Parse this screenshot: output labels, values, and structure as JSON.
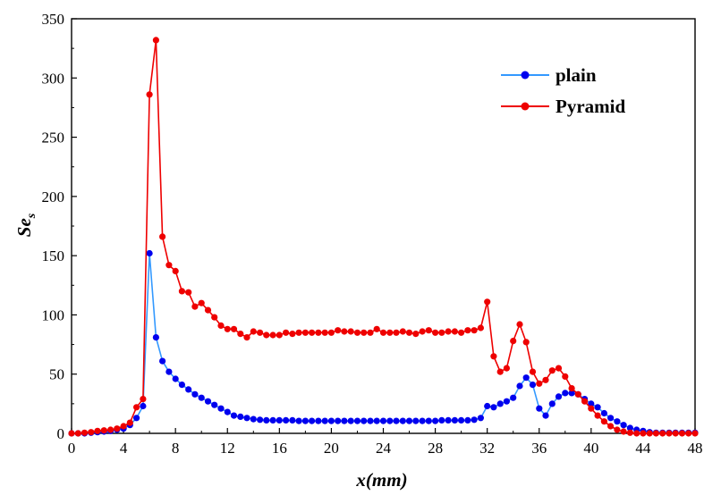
{
  "chart_data": {
    "type": "line",
    "title": "",
    "xlabel": "x(mm)",
    "ylabel_main": "Se",
    "ylabel_sub": "s",
    "xlim": [
      0,
      48
    ],
    "ylim": [
      0,
      350
    ],
    "xticks": [
      "0",
      "4",
      "8",
      "12",
      "16",
      "20",
      "24",
      "28",
      "32",
      "36",
      "40",
      "44",
      "48"
    ],
    "yticks": [
      "0",
      "50",
      "100",
      "150",
      "200",
      "250",
      "300",
      "350"
    ],
    "grid": false,
    "legend_position": "top-right",
    "series": [
      {
        "name": "plain",
        "color": "#0000ee",
        "line_color": "#3399ff",
        "points": [
          [
            0,
            0
          ],
          [
            0.5,
            0
          ],
          [
            1,
            0
          ],
          [
            1.5,
            0.5
          ],
          [
            2,
            1
          ],
          [
            2.5,
            1.5
          ],
          [
            3,
            2
          ],
          [
            3.5,
            3
          ],
          [
            4,
            4
          ],
          [
            4.5,
            7
          ],
          [
            5,
            13
          ],
          [
            5.5,
            23
          ],
          [
            6,
            152
          ],
          [
            6.5,
            81
          ],
          [
            7,
            61
          ],
          [
            7.5,
            52
          ],
          [
            8,
            46
          ],
          [
            8.5,
            41
          ],
          [
            9,
            37
          ],
          [
            9.5,
            33
          ],
          [
            10,
            30
          ],
          [
            10.5,
            27
          ],
          [
            11,
            24
          ],
          [
            11.5,
            21
          ],
          [
            12,
            18
          ],
          [
            12.5,
            15
          ],
          [
            13,
            14
          ],
          [
            13.5,
            13
          ],
          [
            14,
            12
          ],
          [
            14.5,
            11.5
          ],
          [
            15,
            11
          ],
          [
            15.5,
            11
          ],
          [
            16,
            11
          ],
          [
            16.5,
            11
          ],
          [
            17,
            11
          ],
          [
            17.5,
            10.5
          ],
          [
            18,
            10.5
          ],
          [
            18.5,
            10.5
          ],
          [
            19,
            10.5
          ],
          [
            19.5,
            10.5
          ],
          [
            20,
            10.5
          ],
          [
            20.5,
            10.5
          ],
          [
            21,
            10.5
          ],
          [
            21.5,
            10.5
          ],
          [
            22,
            10.5
          ],
          [
            22.5,
            10.5
          ],
          [
            23,
            10.5
          ],
          [
            23.5,
            10.5
          ],
          [
            24,
            10.5
          ],
          [
            24.5,
            10.5
          ],
          [
            25,
            10.5
          ],
          [
            25.5,
            10.5
          ],
          [
            26,
            10.5
          ],
          [
            26.5,
            10.5
          ],
          [
            27,
            10.5
          ],
          [
            27.5,
            10.5
          ],
          [
            28,
            10.5
          ],
          [
            28.5,
            11
          ],
          [
            29,
            11
          ],
          [
            29.5,
            11
          ],
          [
            30,
            11
          ],
          [
            30.5,
            11
          ],
          [
            31,
            11.5
          ],
          [
            31.5,
            13
          ],
          [
            32,
            23
          ],
          [
            32.5,
            22
          ],
          [
            33,
            25
          ],
          [
            33.5,
            27
          ],
          [
            34,
            30
          ],
          [
            34.5,
            40
          ],
          [
            35,
            47
          ],
          [
            35.5,
            41
          ],
          [
            36,
            21
          ],
          [
            36.5,
            15
          ],
          [
            37,
            25
          ],
          [
            37.5,
            31
          ],
          [
            38,
            34
          ],
          [
            38.5,
            34
          ],
          [
            39,
            33
          ],
          [
            39.5,
            29
          ],
          [
            40,
            25
          ],
          [
            40.5,
            22
          ],
          [
            41,
            17
          ],
          [
            41.5,
            13
          ],
          [
            42,
            10
          ],
          [
            42.5,
            7
          ],
          [
            43,
            4.5
          ],
          [
            43.5,
            3
          ],
          [
            44,
            2
          ],
          [
            44.5,
            1
          ],
          [
            45,
            0.5
          ],
          [
            45.5,
            0.5
          ],
          [
            46,
            0.5
          ],
          [
            46.5,
            0.5
          ],
          [
            47,
            0.5
          ],
          [
            47.5,
            0.5
          ],
          [
            48,
            0.5
          ]
        ]
      },
      {
        "name": "Pyramid",
        "color": "#ee0000",
        "line_color": "#ee0000",
        "points": [
          [
            0,
            0
          ],
          [
            0.5,
            0
          ],
          [
            1,
            0.5
          ],
          [
            1.5,
            1
          ],
          [
            2,
            2
          ],
          [
            2.5,
            2.5
          ],
          [
            3,
            3
          ],
          [
            3.5,
            4
          ],
          [
            4,
            6
          ],
          [
            4.5,
            9
          ],
          [
            5,
            22
          ],
          [
            5.5,
            29
          ],
          [
            6,
            286
          ],
          [
            6.5,
            332
          ],
          [
            7,
            166
          ],
          [
            7.5,
            142
          ],
          [
            8,
            137
          ],
          [
            8.5,
            120
          ],
          [
            9,
            119
          ],
          [
            9.5,
            107
          ],
          [
            10,
            110
          ],
          [
            10.5,
            104
          ],
          [
            11,
            98
          ],
          [
            11.5,
            91
          ],
          [
            12,
            88
          ],
          [
            12.5,
            88
          ],
          [
            13,
            84
          ],
          [
            13.5,
            81
          ],
          [
            14,
            86
          ],
          [
            14.5,
            85
          ],
          [
            15,
            83
          ],
          [
            15.5,
            83
          ],
          [
            16,
            83
          ],
          [
            16.5,
            85
          ],
          [
            17,
            84
          ],
          [
            17.5,
            85
          ],
          [
            18,
            85
          ],
          [
            18.5,
            85
          ],
          [
            19,
            85
          ],
          [
            19.5,
            85
          ],
          [
            20,
            85
          ],
          [
            20.5,
            87
          ],
          [
            21,
            86
          ],
          [
            21.5,
            86
          ],
          [
            22,
            85
          ],
          [
            22.5,
            85
          ],
          [
            23,
            85
          ],
          [
            23.5,
            88
          ],
          [
            24,
            85
          ],
          [
            24.5,
            85
          ],
          [
            25,
            85
          ],
          [
            25.5,
            86
          ],
          [
            26,
            85
          ],
          [
            26.5,
            84
          ],
          [
            27,
            86
          ],
          [
            27.5,
            87
          ],
          [
            28,
            85
          ],
          [
            28.5,
            85
          ],
          [
            29,
            86
          ],
          [
            29.5,
            86
          ],
          [
            30,
            85
          ],
          [
            30.5,
            87
          ],
          [
            31,
            87
          ],
          [
            31.5,
            89
          ],
          [
            32,
            111
          ],
          [
            32.5,
            65
          ],
          [
            33,
            52
          ],
          [
            33.5,
            55
          ],
          [
            34,
            78
          ],
          [
            34.5,
            92
          ],
          [
            35,
            77
          ],
          [
            35.5,
            52
          ],
          [
            36,
            42
          ],
          [
            36.5,
            45
          ],
          [
            37,
            53
          ],
          [
            37.5,
            55
          ],
          [
            38,
            48
          ],
          [
            38.5,
            38
          ],
          [
            39,
            33
          ],
          [
            39.5,
            27
          ],
          [
            40,
            21
          ],
          [
            40.5,
            15
          ],
          [
            41,
            10
          ],
          [
            41.5,
            6
          ],
          [
            42,
            3
          ],
          [
            42.5,
            1.5
          ],
          [
            43,
            0.5
          ],
          [
            43.5,
            0
          ],
          [
            44,
            0
          ],
          [
            44.5,
            0
          ],
          [
            45,
            0
          ],
          [
            45.5,
            0
          ],
          [
            46,
            0
          ],
          [
            46.5,
            0
          ],
          [
            47,
            0
          ],
          [
            47.5,
            0
          ],
          [
            48,
            0
          ]
        ]
      }
    ]
  }
}
